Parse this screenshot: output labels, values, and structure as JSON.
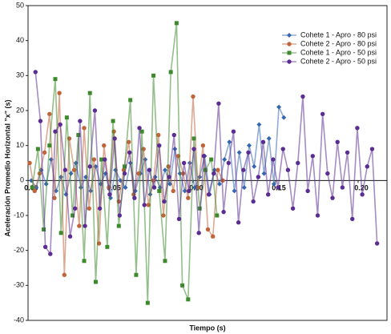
{
  "chart_data": {
    "type": "line",
    "x_label": "Tiempo (s)",
    "y_label": "Aceleración Promedio Horizontal \"x\" (s)",
    "xlim": [
      0,
      0.2175
    ],
    "ylim": [
      -40,
      50
    ],
    "xticks": [
      {
        "value": 0,
        "label": "0.00"
      },
      {
        "value": 0.05,
        "label": "0.05"
      },
      {
        "value": 0.1,
        "label": "0.10"
      },
      {
        "value": 0.15,
        "label": "0.15"
      },
      {
        "value": 0.2,
        "label": "0.20"
      }
    ],
    "yticks": [
      -40,
      -30,
      -20,
      -10,
      0,
      10,
      20,
      30,
      40,
      50
    ],
    "legend": "upper right",
    "series": [
      {
        "name": "Cohete 1 - Apro - 80 psi",
        "color": "#3566b0",
        "marker": "diamond",
        "x": [
          0.002,
          0.005,
          0.008,
          0.011,
          0.014,
          0.017,
          0.02,
          0.023,
          0.026,
          0.029,
          0.032,
          0.035,
          0.038,
          0.041,
          0.044,
          0.047,
          0.05,
          0.053,
          0.056,
          0.059,
          0.062,
          0.065,
          0.068,
          0.071,
          0.074,
          0.077,
          0.08,
          0.083,
          0.086,
          0.089,
          0.092,
          0.095,
          0.098,
          0.101,
          0.104,
          0.107,
          0.11,
          0.113,
          0.116,
          0.119,
          0.122,
          0.125,
          0.128,
          0.131,
          0.134,
          0.137,
          0.14,
          0.143,
          0.146,
          0.149,
          0.152,
          0.155
        ],
        "values": [
          0,
          -2,
          3,
          -1,
          6,
          -3,
          1,
          -4,
          2,
          5,
          -2,
          1,
          -3,
          4,
          -1,
          2,
          -5,
          3,
          0,
          -2,
          5,
          -3,
          2,
          6,
          -4,
          1,
          -2,
          3,
          -1,
          9,
          2,
          -3,
          5,
          -2,
          1,
          7,
          -4,
          3,
          -1,
          6,
          11,
          -3,
          8,
          -2,
          10,
          4,
          16,
          2,
          12,
          -1,
          21,
          18
        ]
      },
      {
        "name": "Cohete 2 - Apro - 80 psi",
        "color": "#c0653a",
        "marker": "circle",
        "x": [
          0.001,
          0.004,
          0.007,
          0.01,
          0.013,
          0.016,
          0.019,
          0.022,
          0.025,
          0.028,
          0.031,
          0.034,
          0.037,
          0.04,
          0.043,
          0.046,
          0.049,
          0.052,
          0.055,
          0.058,
          0.061,
          0.064,
          0.067,
          0.07,
          0.073,
          0.076,
          0.079,
          0.082,
          0.085,
          0.088,
          0.091,
          0.094,
          0.097,
          0.1,
          0.103,
          0.106,
          0.109,
          0.112,
          0.115,
          0.118
        ],
        "values": [
          5,
          -3,
          2,
          8,
          19,
          -5,
          25,
          -27,
          12,
          3,
          -13,
          15,
          -8,
          6,
          -18,
          10,
          -2,
          14,
          -6,
          3,
          11,
          -4,
          2,
          9,
          -7,
          0,
          13,
          -10,
          4,
          -3,
          7,
          2,
          -5,
          24,
          -2,
          10,
          -14,
          -16,
          3,
          0
        ]
      },
      {
        "name": "Cohete 1 - Apro - 50 psi",
        "color": "#3d8a2c",
        "marker": "square",
        "x": [
          0.0025,
          0.006,
          0.0095,
          0.013,
          0.0165,
          0.02,
          0.0235,
          0.027,
          0.0305,
          0.034,
          0.0375,
          0.041,
          0.0445,
          0.048,
          0.0515,
          0.055,
          0.0585,
          0.062,
          0.0655,
          0.069,
          0.0725,
          0.076,
          0.0795,
          0.083,
          0.0865,
          0.09,
          0.0935,
          0.097,
          0.1005,
          0.104,
          0.1075,
          0.111,
          0.1145
        ],
        "values": [
          -2,
          9,
          -14,
          10,
          29,
          -15,
          18,
          -10,
          13,
          -23,
          25,
          -29,
          6,
          -19,
          17,
          -13,
          4,
          23,
          -27,
          14,
          -35,
          30,
          -3,
          -23,
          31,
          45,
          -30,
          -34,
          12,
          -8,
          3,
          6,
          -10
        ]
      },
      {
        "name": "Cohete 2 - Apro - 50 psi",
        "color": "#5b2d92",
        "marker": "circle",
        "x": [
          0.0045,
          0.0075,
          0.0105,
          0.0135,
          0.0165,
          0.0195,
          0.0225,
          0.0255,
          0.0285,
          0.0315,
          0.0345,
          0.0375,
          0.0405,
          0.0435,
          0.0465,
          0.0495,
          0.0525,
          0.0555,
          0.0585,
          0.0615,
          0.0645,
          0.0675,
          0.0705,
          0.0735,
          0.0765,
          0.0795,
          0.0825,
          0.0855,
          0.0885,
          0.0915,
          0.0945,
          0.0975,
          0.1005,
          0.1035,
          0.1065,
          0.1095,
          0.1125,
          0.1155,
          0.1185,
          0.1215,
          0.1245,
          0.1275,
          0.1305,
          0.1335,
          0.1365,
          0.1395,
          0.1425,
          0.1455,
          0.1485,
          0.1515,
          0.1545,
          0.1575,
          0.1605,
          0.1635,
          0.1665,
          0.1695,
          0.1725,
          0.1755,
          0.1785,
          0.1815,
          0.1845,
          0.1875,
          0.1905,
          0.1935,
          0.1965,
          0.1995,
          0.2025,
          0.2055,
          0.2085,
          0.2115
        ],
        "values": [
          31,
          17,
          -19,
          -21,
          14,
          16,
          3,
          -16,
          -8,
          17,
          -13,
          4,
          20,
          -8,
          6,
          -4,
          12,
          -10,
          2,
          8,
          -5,
          15,
          -7,
          3,
          -2,
          10,
          -6,
          1,
          13,
          -11,
          5,
          -3,
          9,
          -15,
          7,
          -4,
          2,
          22,
          -9,
          5,
          14,
          -12,
          3,
          8,
          -6,
          1,
          11,
          -4,
          6,
          -2,
          9,
          3,
          -8,
          5,
          24,
          -3,
          7,
          -10,
          19,
          2,
          -5,
          11,
          -2,
          8,
          -11,
          15,
          -4,
          4,
          9,
          -18
        ]
      }
    ]
  }
}
